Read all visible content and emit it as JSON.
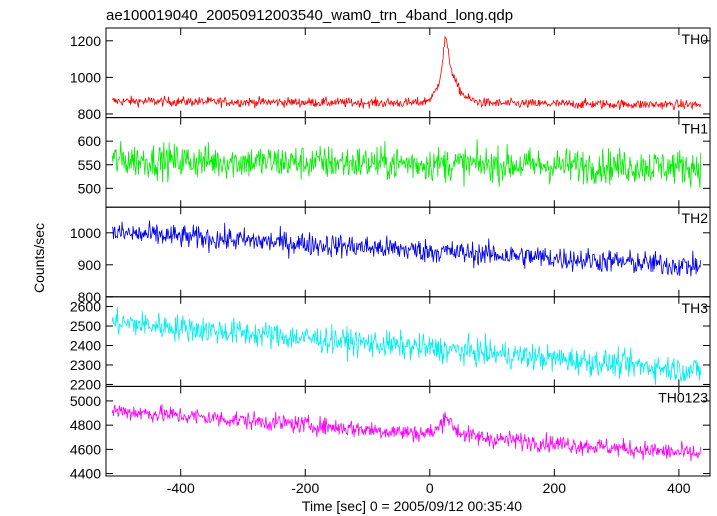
{
  "chart_data": {
    "type": "line",
    "title": "ae100019040_20050912003540_wam0_trn_4band_long.qdp",
    "xlabel": "Time [sec] 0 = 2005/09/12 00:35:40",
    "ylabel": "Counts/sec",
    "xlim": [
      -520,
      450
    ],
    "x_ticks": [
      -400,
      -200,
      0,
      200,
      400
    ],
    "data_x_range": [
      -510,
      435
    ],
    "grid": false,
    "panels": [
      {
        "name": "TH0",
        "color": "#ff0000",
        "ylim": [
          780,
          1270
        ],
        "y_ticks": [
          800,
          1000,
          1200
        ],
        "baseline": 870,
        "noise": 50,
        "burst": {
          "center": 25,
          "peak": 1250
        },
        "trend_end": 850
      },
      {
        "name": "TH1",
        "color": "#00ee00",
        "ylim": [
          460,
          650
        ],
        "y_ticks": [
          500,
          550,
          600
        ],
        "baseline": 560,
        "noise": 70,
        "trend_end": 545
      },
      {
        "name": "TH2",
        "color": "#0000ee",
        "ylim": [
          800,
          1080
        ],
        "y_ticks": [
          800,
          900,
          1000
        ],
        "baseline": 1000,
        "noise": 70,
        "trend_end": 895
      },
      {
        "name": "TH3",
        "color": "#00eeee",
        "ylim": [
          2190,
          2650
        ],
        "y_ticks": [
          2200,
          2300,
          2400,
          2500,
          2600
        ],
        "baseline": 2520,
        "noise": 130,
        "trend_end": 2270
      },
      {
        "name": "TH0123",
        "color": "#ff00ff",
        "ylim": [
          4380,
          5120
        ],
        "y_ticks": [
          4400,
          4600,
          4800,
          5000
        ],
        "baseline": 4920,
        "noise": 140,
        "burst": {
          "center": 25,
          "peak": 5110
        },
        "trend_end": 4560
      }
    ]
  }
}
